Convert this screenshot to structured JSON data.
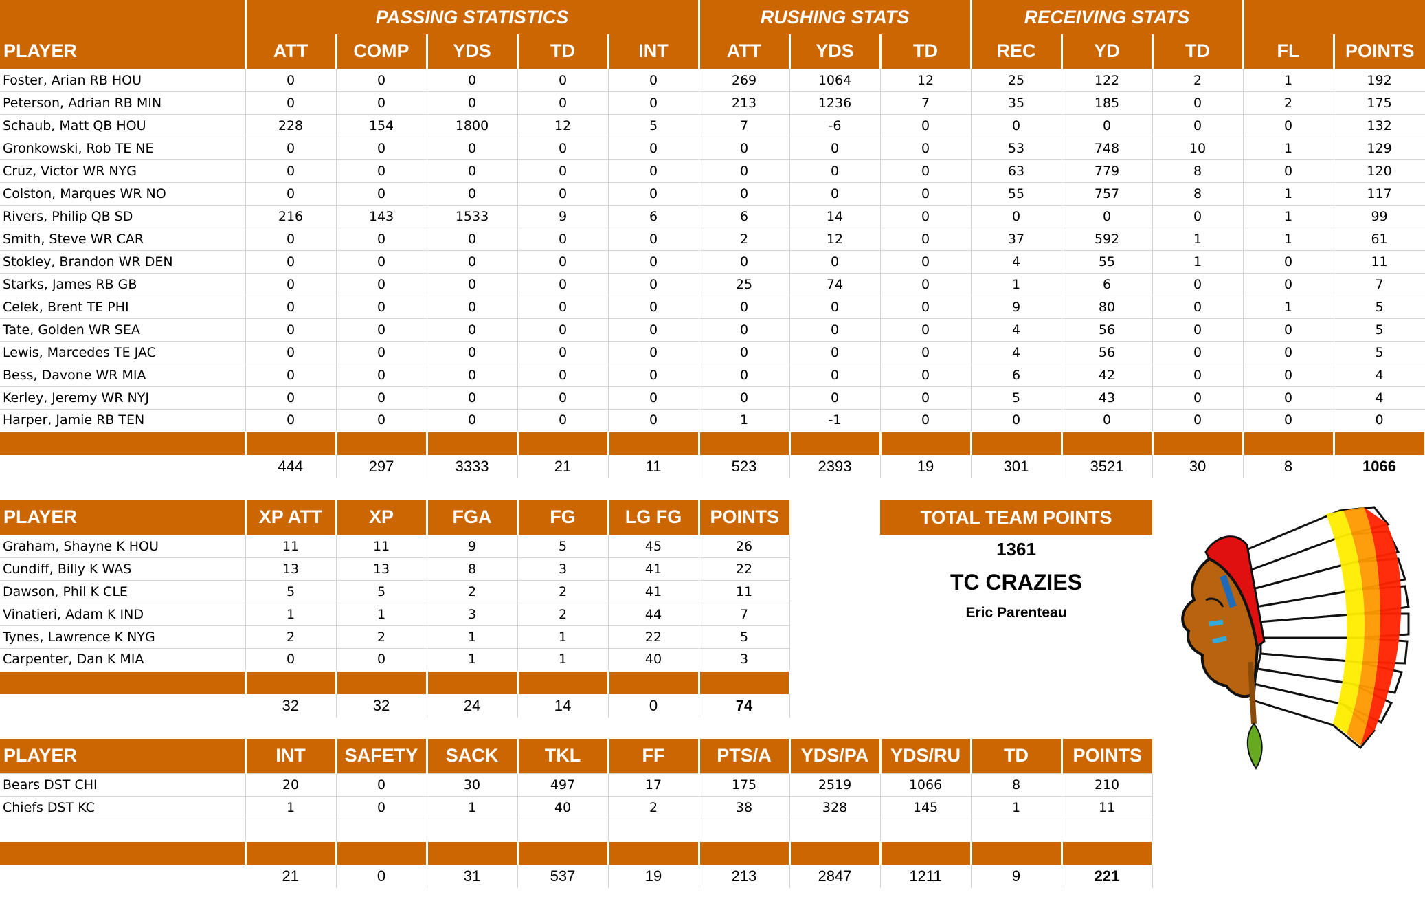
{
  "main": {
    "groups": [
      "PASSING STATISTICS",
      "RUSHING STATS",
      "RECEIVING STATS"
    ],
    "columns": [
      "PLAYER",
      "ATT",
      "COMP",
      "YDS",
      "TD",
      "INT",
      "ATT",
      "YDS",
      "TD",
      "REC",
      "YD",
      "TD",
      "FL",
      "POINTS"
    ],
    "rows": [
      [
        "Foster, Arian RB HOU",
        "0",
        "0",
        "0",
        "0",
        "0",
        "269",
        "1064",
        "12",
        "25",
        "122",
        "2",
        "1",
        "192"
      ],
      [
        "Peterson, Adrian RB MIN",
        "0",
        "0",
        "0",
        "0",
        "0",
        "213",
        "1236",
        "7",
        "35",
        "185",
        "0",
        "2",
        "175"
      ],
      [
        "Schaub, Matt QB HOU",
        "228",
        "154",
        "1800",
        "12",
        "5",
        "7",
        "-6",
        "0",
        "0",
        "0",
        "0",
        "0",
        "132"
      ],
      [
        "Gronkowski, Rob TE NE",
        "0",
        "0",
        "0",
        "0",
        "0",
        "0",
        "0",
        "0",
        "53",
        "748",
        "10",
        "1",
        "129"
      ],
      [
        "Cruz, Victor WR NYG",
        "0",
        "0",
        "0",
        "0",
        "0",
        "0",
        "0",
        "0",
        "63",
        "779",
        "8",
        "0",
        "120"
      ],
      [
        "Colston, Marques WR NO",
        "0",
        "0",
        "0",
        "0",
        "0",
        "0",
        "0",
        "0",
        "55",
        "757",
        "8",
        "1",
        "117"
      ],
      [
        "Rivers, Philip QB SD",
        "216",
        "143",
        "1533",
        "9",
        "6",
        "6",
        "14",
        "0",
        "0",
        "0",
        "0",
        "1",
        "99"
      ],
      [
        "Smith, Steve WR CAR",
        "0",
        "0",
        "0",
        "0",
        "0",
        "2",
        "12",
        "0",
        "37",
        "592",
        "1",
        "1",
        "61"
      ],
      [
        "Stokley, Brandon WR DEN",
        "0",
        "0",
        "0",
        "0",
        "0",
        "0",
        "0",
        "0",
        "4",
        "55",
        "1",
        "0",
        "11"
      ],
      [
        "Starks, James RB GB",
        "0",
        "0",
        "0",
        "0",
        "0",
        "25",
        "74",
        "0",
        "1",
        "6",
        "0",
        "0",
        "7"
      ],
      [
        "Celek, Brent TE PHI",
        "0",
        "0",
        "0",
        "0",
        "0",
        "0",
        "0",
        "0",
        "9",
        "80",
        "0",
        "1",
        "5"
      ],
      [
        "Tate, Golden WR SEA",
        "0",
        "0",
        "0",
        "0",
        "0",
        "0",
        "0",
        "0",
        "4",
        "56",
        "0",
        "0",
        "5"
      ],
      [
        "Lewis, Marcedes TE JAC",
        "0",
        "0",
        "0",
        "0",
        "0",
        "0",
        "0",
        "0",
        "4",
        "56",
        "0",
        "0",
        "5"
      ],
      [
        "Bess, Davone WR MIA",
        "0",
        "0",
        "0",
        "0",
        "0",
        "0",
        "0",
        "0",
        "6",
        "42",
        "0",
        "0",
        "4"
      ],
      [
        "Kerley, Jeremy WR NYJ",
        "0",
        "0",
        "0",
        "0",
        "0",
        "0",
        "0",
        "0",
        "5",
        "43",
        "0",
        "0",
        "4"
      ],
      [
        "Harper, Jamie RB TEN",
        "0",
        "0",
        "0",
        "0",
        "0",
        "1",
        "-1",
        "0",
        "0",
        "0",
        "0",
        "0",
        "0"
      ]
    ],
    "totals": [
      "",
      "444",
      "297",
      "3333",
      "21",
      "11",
      "523",
      "2393",
      "19",
      "301",
      "3521",
      "30",
      "8",
      "1066"
    ]
  },
  "kicker": {
    "columns": [
      "PLAYER",
      "XP ATT",
      "XP",
      "FGA",
      "FG",
      "LG FG",
      "POINTS"
    ],
    "rows": [
      [
        "Graham, Shayne K HOU",
        "11",
        "11",
        "9",
        "5",
        "45",
        "26"
      ],
      [
        "Cundiff, Billy K WAS",
        "13",
        "13",
        "8",
        "3",
        "41",
        "22"
      ],
      [
        "Dawson, Phil K CLE",
        "5",
        "5",
        "2",
        "2",
        "41",
        "11"
      ],
      [
        "Vinatieri, Adam K IND",
        "1",
        "1",
        "3",
        "2",
        "44",
        "7"
      ],
      [
        "Tynes, Lawrence K NYG",
        "2",
        "2",
        "1",
        "1",
        "22",
        "5"
      ],
      [
        "Carpenter, Dan K MIA",
        "0",
        "0",
        "1",
        "1",
        "40",
        "3"
      ]
    ],
    "totals": [
      "",
      "32",
      "32",
      "24",
      "14",
      "0",
      "74"
    ]
  },
  "defense": {
    "columns": [
      "PLAYER",
      "INT",
      "SAFETY",
      "SACK",
      "TKL",
      "FF",
      "PTS/A",
      "YDS/PA",
      "YDS/RU",
      "TD",
      "POINTS"
    ],
    "rows": [
      [
        "Bears DST CHI",
        "20",
        "0",
        "30",
        "497",
        "17",
        "175",
        "2519",
        "1066",
        "8",
        "210"
      ],
      [
        "Chiefs DST KC",
        "1",
        "0",
        "1",
        "40",
        "2",
        "38",
        "328",
        "145",
        "1",
        "11"
      ],
      [
        "",
        "",
        "",
        "",
        "",
        "",
        "",
        "",
        "",
        "",
        ""
      ]
    ],
    "totals": [
      "",
      "21",
      "0",
      "31",
      "537",
      "19",
      "213",
      "2847",
      "1211",
      "9",
      "221"
    ]
  },
  "team": {
    "title": "TOTAL TEAM POINTS",
    "points": "1361",
    "name": "TC CRAZIES",
    "owner": "Eric Parenteau",
    "logo": "chief-headdress-logo-icon"
  },
  "colors": {
    "header": "#CC6600",
    "grid": "#d4d4d4"
  }
}
